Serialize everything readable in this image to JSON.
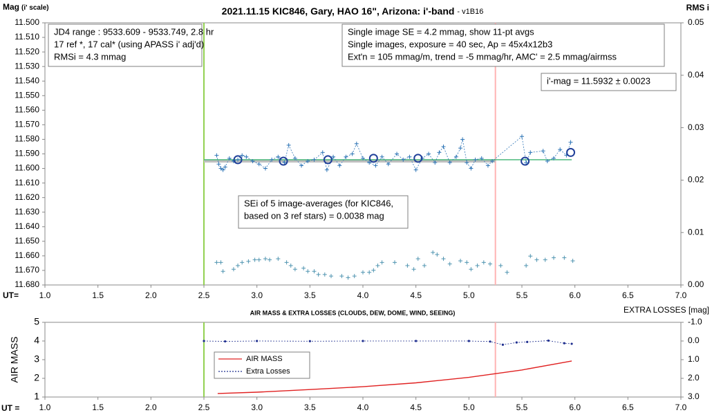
{
  "chart_data": [
    {
      "type": "line",
      "title": "2021.11.15 KIC846, Gary, HAO 16\", Arizona: i'-band",
      "subtitle": "- v1B16",
      "y_label": "Mag",
      "y_label_note": "(i' scale)",
      "y2_label": "RMS i",
      "x_label": "UT=",
      "xlim": [
        1,
        7
      ],
      "xticks": [
        {
          "value": 1,
          "label": "1.0"
        },
        1.5,
        {
          "value": 2,
          "label": "2.0"
        },
        2.5,
        {
          "value": 3,
          "label": "3.0"
        },
        3.5,
        {
          "value": 4,
          "label": "4.0"
        },
        4.5,
        {
          "value": 5,
          "label": "5.0"
        },
        5.5,
        {
          "value": 6,
          "label": "6.0"
        },
        6.5,
        {
          "value": 7,
          "label": "7.0"
        }
      ],
      "ylim": [
        11.68,
        11.5
      ],
      "yticks": [
        {
          "value": 11.5,
          "label": "11.500"
        },
        {
          "value": 11.51,
          "label": "11.510"
        },
        {
          "value": 11.52,
          "label": "11.520"
        },
        {
          "value": 11.53,
          "label": "11.530"
        },
        {
          "value": 11.54,
          "label": "11.540"
        },
        {
          "value": 11.55,
          "label": "11.550"
        },
        {
          "value": 11.56,
          "label": "11.560"
        },
        {
          "value": 11.57,
          "label": "11.570"
        },
        {
          "value": 11.58,
          "label": "11.580"
        },
        {
          "value": 11.59,
          "label": "11.590"
        },
        {
          "value": 11.6,
          "label": "11.600"
        },
        {
          "value": 11.61,
          "label": "11.610"
        },
        {
          "value": 11.62,
          "label": "11.620"
        },
        {
          "value": 11.63,
          "label": "11.630"
        },
        {
          "value": 11.64,
          "label": "11.640"
        },
        {
          "value": 11.65,
          "label": "11.650"
        },
        {
          "value": 11.66,
          "label": "11.660"
        },
        {
          "value": 11.67,
          "label": "11.670"
        },
        {
          "value": 11.68,
          "label": "11.680"
        }
      ],
      "y2lim": [
        0,
        0.05
      ],
      "y2ticks": [
        {
          "value": 0,
          "label": "0.00"
        },
        0.01,
        0.02,
        0.03,
        0.04,
        0.05
      ],
      "vlines": [
        {
          "x": 2.5,
          "color": "#92d050"
        },
        {
          "x": 5.25,
          "color": "#ffb3b3"
        }
      ],
      "annotations": [
        {
          "lines": [
            "JD4 range : 9533.609 - 9533.749, 2.8  hr",
            "17 ref *, 17 cal* (using APASS i' adj'd)",
            "RMSi = 4.3 mmag"
          ]
        },
        {
          "lines": [
            "Single image SE = 4.2 mmag, show 11-pt avgs",
            "Single images, exposure = 40 sec, Ap = 45x4x12b3",
            "Ext'n = 105 mmag/m, trend = -5 mmag/hr, AMC' = 2.5 mmag/airmss"
          ]
        },
        {
          "lines": [
            "i'-mag = 11.5932 ± 0.0023"
          ]
        },
        {
          "lines": [
            "SEi of 5 image-averages (for KIC846,",
            "based on 3 ref stars) = 0.0038 mag"
          ]
        }
      ],
      "series": [
        {
          "color": "#bfbfbf",
          "line": "thick",
          "marker": "none",
          "x": [
            2.5,
            5.25
          ],
          "values": [
            11.595,
            11.595
          ]
        },
        {
          "color": "#3cb371",
          "line": "solid",
          "marker": "none",
          "x": [
            2.5,
            5.97
          ],
          "values": [
            11.594,
            11.594
          ]
        },
        {
          "color": "#2e75b6",
          "line": "dashed",
          "marker": "plus",
          "x": [
            2.62,
            2.64,
            2.66,
            2.68,
            2.7,
            2.74,
            2.78,
            2.82,
            2.86,
            2.9,
            2.96,
            3.02,
            3.08,
            3.14,
            3.2,
            3.26,
            3.3,
            3.36,
            3.42,
            3.48,
            3.54,
            3.62,
            3.66,
            3.72,
            3.78,
            3.84,
            3.9,
            3.94,
            4.0,
            4.06,
            4.12,
            4.18,
            4.24,
            4.32,
            4.38,
            4.44,
            4.5,
            4.56,
            4.62,
            4.68,
            4.72,
            4.76,
            4.82,
            4.88,
            4.92,
            4.94,
            4.98,
            5.02,
            5.06,
            5.12,
            5.18,
            5.22,
            5.5,
            5.54,
            5.58,
            5.7,
            5.74,
            5.8,
            5.86,
            5.92,
            5.96
          ],
          "values": [
            11.591,
            11.597,
            11.6,
            11.601,
            11.599,
            11.593,
            11.595,
            11.594,
            11.591,
            11.592,
            11.595,
            11.597,
            11.6,
            11.594,
            11.592,
            11.596,
            11.584,
            11.593,
            11.598,
            11.595,
            11.594,
            11.589,
            11.601,
            11.592,
            11.598,
            11.592,
            11.59,
            11.583,
            11.593,
            11.596,
            11.598,
            11.592,
            11.597,
            11.59,
            11.594,
            11.592,
            11.601,
            11.593,
            11.59,
            11.596,
            11.589,
            11.585,
            11.596,
            11.592,
            11.586,
            11.58,
            11.596,
            11.6,
            11.594,
            11.593,
            11.598,
            11.595,
            11.578,
            11.596,
            11.589,
            11.588,
            11.595,
            11.593,
            11.587,
            11.591,
            11.582
          ]
        },
        {
          "color": "#1f3f99",
          "line": "none",
          "marker": "circle",
          "x": [
            2.82,
            3.25,
            3.67,
            4.1,
            4.52,
            5.53,
            5.96
          ],
          "values": [
            11.594,
            11.595,
            11.594,
            11.593,
            11.593,
            11.595,
            11.589
          ]
        },
        {
          "color": "#4f94b0",
          "line": "none",
          "marker": "plus",
          "axis": "y2",
          "x": [
            2.62,
            2.66,
            2.68,
            2.78,
            2.82,
            2.86,
            2.92,
            2.98,
            3.02,
            3.08,
            3.12,
            3.2,
            3.28,
            3.32,
            3.36,
            3.44,
            3.48,
            3.54,
            3.58,
            3.64,
            3.7,
            3.8,
            3.86,
            3.92,
            4.0,
            4.06,
            4.1,
            4.14,
            4.18,
            4.3,
            4.42,
            4.48,
            4.52,
            4.58,
            4.66,
            4.7,
            4.76,
            4.82,
            4.92,
            4.98,
            5.02,
            5.08,
            5.14,
            5.2,
            5.3,
            5.36,
            5.54,
            5.58,
            5.64,
            5.72,
            5.8,
            5.9,
            5.98
          ],
          "values": [
            0.0043,
            0.0043,
            0.0026,
            0.003,
            0.0037,
            0.0043,
            0.0045,
            0.0048,
            0.0048,
            0.005,
            0.0048,
            0.005,
            0.0043,
            0.0037,
            0.003,
            0.0032,
            0.0026,
            0.0026,
            0.002,
            0.002,
            0.0017,
            0.0017,
            0.0014,
            0.0017,
            0.0024,
            0.0024,
            0.0028,
            0.0037,
            0.0043,
            0.0043,
            0.0037,
            0.003,
            0.005,
            0.0037,
            0.0062,
            0.0058,
            0.005,
            0.004,
            0.0046,
            0.0043,
            0.003,
            0.0037,
            0.0043,
            0.004,
            0.0037,
            0.0024,
            0.0037,
            0.0055,
            0.0048,
            0.0048,
            0.0052,
            0.0052,
            0.0046
          ]
        }
      ]
    },
    {
      "type": "line",
      "title": "AIR MASS & EXTRA LOSSES (CLOUDS, DEW, DOME, WIND, SEEING)",
      "y_label": "AIR MASS",
      "y2_label": "EXTRA LOSSES [mag]",
      "x_label": "UT =",
      "xlim": [
        1,
        7
      ],
      "xticks": [
        {
          "value": 1,
          "label": "1.0"
        },
        1.5,
        {
          "value": 2,
          "label": "2.0"
        },
        2.5,
        {
          "value": 3,
          "label": "3.0"
        },
        3.5,
        {
          "value": 4,
          "label": "4.0"
        },
        4.5,
        {
          "value": 5,
          "label": "5.0"
        },
        5.5,
        {
          "value": 6,
          "label": "6.0"
        },
        6.5,
        {
          "value": 7,
          "label": "7.0"
        }
      ],
      "ylim": [
        1,
        5
      ],
      "yticks": [
        1,
        2,
        3,
        4,
        5
      ],
      "y2lim": [
        3,
        -1
      ],
      "y2ticks": [
        {
          "value": -1,
          "label": "-1.0"
        },
        {
          "value": 0,
          "label": "0.0"
        },
        {
          "value": 1,
          "label": "1.0"
        },
        {
          "value": 2,
          "label": "2.0"
        },
        {
          "value": 3,
          "label": "3.0"
        }
      ],
      "vlines": [
        {
          "x": 2.5,
          "color": "#92d050"
        },
        {
          "x": 5.25,
          "color": "#ffb3b3"
        }
      ],
      "series": [
        {
          "name": "AIR MASS",
          "color": "#e02020",
          "line": "solid",
          "marker": "none",
          "x": [
            2.63,
            3.0,
            3.5,
            4.0,
            4.5,
            5.0,
            5.5,
            5.97
          ],
          "values": [
            1.19,
            1.26,
            1.4,
            1.55,
            1.76,
            2.05,
            2.45,
            2.93
          ]
        },
        {
          "name": "Extra Losses",
          "color": "#1f2f8f",
          "line": "dashed",
          "marker": "dot",
          "axis": "y2",
          "x": [
            2.5,
            2.7,
            3.0,
            3.5,
            4.0,
            4.5,
            5.0,
            5.2,
            5.32,
            5.45,
            5.55,
            5.75,
            5.9,
            5.97
          ],
          "values": [
            0.0,
            0.02,
            0.0,
            0.01,
            0.0,
            0.0,
            0.0,
            0.03,
            0.2,
            0.08,
            0.05,
            -0.02,
            0.12,
            0.15
          ]
        }
      ]
    }
  ]
}
